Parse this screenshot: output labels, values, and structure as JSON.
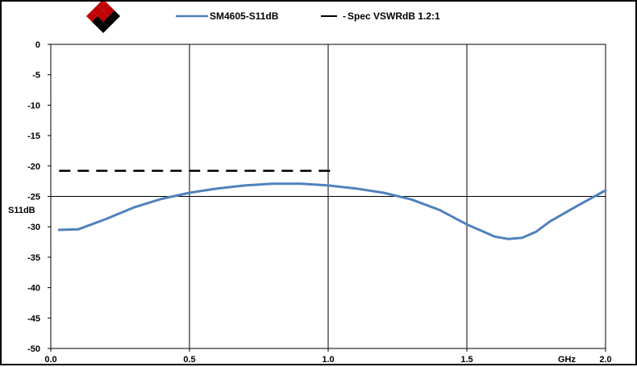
{
  "chart_data": {
    "type": "line",
    "title": "",
    "xlabel": "GHz",
    "ylabel": "S11dB",
    "xlim": [
      0.0,
      2.0
    ],
    "ylim": [
      -50,
      0
    ],
    "x_ticks": [
      0.0,
      0.5,
      1.0,
      1.5,
      2.0
    ],
    "x_tick_labels": [
      "0.0",
      "0.5",
      "1.0",
      "1.5",
      "2.0"
    ],
    "y_ticks": [
      0,
      -5,
      -10,
      -15,
      -20,
      -25,
      -30,
      -35,
      -40,
      -45,
      -50
    ],
    "y_tick_labels": [
      "0",
      "-5",
      "-10",
      "-15",
      "-20",
      "-25",
      "-30",
      "-35",
      "-40",
      "-45",
      "-50"
    ],
    "grid": "vertical lines at x ticks; horizontal line at y = -25",
    "legend_position": "top-center",
    "series": [
      {
        "name": "SM4605-S11dB",
        "color": "#4f81bd",
        "style": "solid",
        "x": [
          0.03,
          0.1,
          0.2,
          0.3,
          0.4,
          0.5,
          0.6,
          0.7,
          0.8,
          0.85,
          0.9,
          1.0,
          1.1,
          1.2,
          1.3,
          1.4,
          1.5,
          1.6,
          1.65,
          1.7,
          1.75,
          1.8,
          1.9,
          2.0
        ],
        "y": [
          -30.5,
          -30.4,
          -28.7,
          -26.8,
          -25.4,
          -24.4,
          -23.7,
          -23.2,
          -22.9,
          -22.9,
          -22.9,
          -23.2,
          -23.7,
          -24.4,
          -25.5,
          -27.2,
          -29.6,
          -31.6,
          -32.0,
          -31.8,
          -30.8,
          -29.1,
          -26.5,
          -24.0
        ]
      },
      {
        "name": "Spec VSWRdB 1.2:1",
        "color": "#000000",
        "style": "dashed",
        "x": [
          0.03,
          1.02
        ],
        "y": [
          -20.8,
          -20.8
        ]
      }
    ]
  }
}
